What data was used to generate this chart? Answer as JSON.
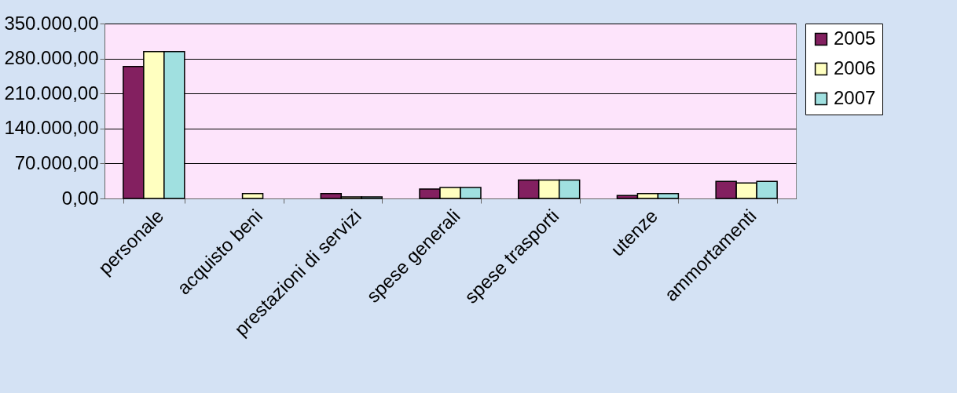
{
  "chart_data": {
    "type": "bar",
    "categories": [
      "personale",
      "acquisto beni",
      "prestazioni di servizi",
      "spese generali",
      "spese trasporti",
      "utenze",
      "ammortamenti"
    ],
    "series": [
      {
        "name": "2005",
        "color": "#832060",
        "values": [
          264000,
          null,
          10000,
          19000,
          37000,
          6000,
          34000
        ]
      },
      {
        "name": "2006",
        "color": "#ffffc0",
        "values": [
          294000,
          10000,
          3000,
          22000,
          37000,
          10000,
          31000
        ]
      },
      {
        "name": "2007",
        "color": "#a0e0e0",
        "values": [
          294000,
          null,
          3000,
          22000,
          37000,
          10000,
          34000
        ]
      }
    ],
    "ylim": [
      0,
      350000
    ],
    "yticks": [
      {
        "value": 0,
        "label": "0,00"
      },
      {
        "value": 70000,
        "label": "70.000,00"
      },
      {
        "value": 140000,
        "label": "140.000,00"
      },
      {
        "value": 210000,
        "label": "210.000,00"
      },
      {
        "value": 280000,
        "label": "280.000,00"
      },
      {
        "value": 350000,
        "label": "350.000,00"
      }
    ],
    "grid": "y",
    "legend": "right"
  }
}
